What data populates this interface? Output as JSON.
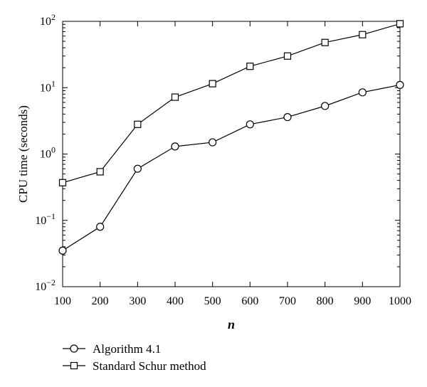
{
  "chart_data": {
    "type": "line",
    "title": "",
    "xlabel": "n",
    "ylabel": "CPU time (seconds)",
    "yscale": "log",
    "xlim": [
      100,
      1000
    ],
    "ylim": [
      0.01,
      100
    ],
    "x": [
      100,
      200,
      300,
      400,
      500,
      600,
      700,
      800,
      900,
      1000
    ],
    "x_ticks": [
      "100",
      "200",
      "300",
      "400",
      "500",
      "600",
      "700",
      "800",
      "900",
      "1000"
    ],
    "y_ticks": [
      {
        "value": 0.01,
        "base": "10",
        "exp": "−2"
      },
      {
        "value": 0.1,
        "base": "10",
        "exp": "−1"
      },
      {
        "value": 1,
        "base": "10",
        "exp": "0"
      },
      {
        "value": 10,
        "base": "10",
        "exp": "1"
      },
      {
        "value": 100,
        "base": "10",
        "exp": "2"
      }
    ],
    "grid": false,
    "legend_position": "below",
    "series": [
      {
        "name": "Algorithm 4.1",
        "marker": "circle",
        "values": [
          0.035,
          0.08,
          0.6,
          1.3,
          1.5,
          2.8,
          3.6,
          5.3,
          8.5,
          11
        ]
      },
      {
        "name": "Standard Schur method",
        "marker": "square",
        "values": [
          0.37,
          0.54,
          2.8,
          7.2,
          11.5,
          21,
          30,
          48,
          63,
          92
        ]
      }
    ]
  }
}
